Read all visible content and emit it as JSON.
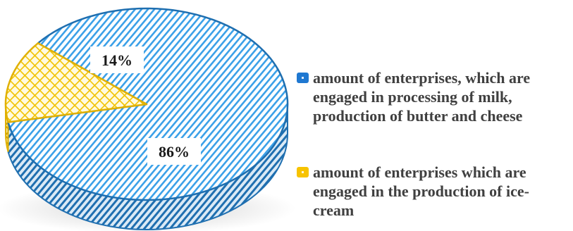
{
  "chart_data": {
    "type": "pie",
    "title": "",
    "legend_position": "right",
    "slices": [
      {
        "name": "amount of enterprises, which are engaged in processing of milk, production of butter and cheese",
        "value": 86,
        "label": "86%",
        "color": "#2a8ad6"
      },
      {
        "name": "amount of enterprises which are engaged in the production of ice-cream",
        "value": 14,
        "label": "14%",
        "color": "#f2c200"
      }
    ]
  }
}
